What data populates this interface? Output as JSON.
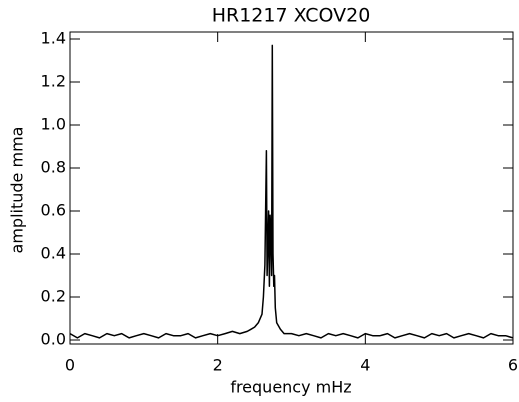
{
  "chart_data": {
    "type": "line",
    "title": "HR1217 XCOV20",
    "xlabel": "frequency mHz",
    "ylabel": "amplitude mma",
    "x": [
      0,
      0.1,
      0.2,
      0.3,
      0.4,
      0.5,
      0.6,
      0.7,
      0.8,
      0.9,
      1.0,
      1.1,
      1.2,
      1.3,
      1.4,
      1.5,
      1.6,
      1.7,
      1.8,
      1.9,
      2.0,
      2.1,
      2.2,
      2.3,
      2.4,
      2.45,
      2.5,
      2.55,
      2.6,
      2.62,
      2.64,
      2.66,
      2.67,
      2.68,
      2.69,
      2.7,
      2.71,
      2.72,
      2.73,
      2.74,
      2.75,
      2.76,
      2.77,
      2.78,
      2.8,
      2.85,
      2.9,
      3.0,
      3.1,
      3.2,
      3.3,
      3.4,
      3.5,
      3.6,
      3.7,
      3.8,
      3.9,
      4.0,
      4.1,
      4.2,
      4.3,
      4.4,
      4.5,
      4.6,
      4.7,
      4.8,
      4.9,
      5.0,
      5.1,
      5.2,
      5.3,
      5.4,
      5.5,
      5.6,
      5.7,
      5.8,
      5.9,
      6.0
    ],
    "series": [
      {
        "name": "amplitude",
        "color": "#000000",
        "values": [
          0.03,
          0.01,
          0.03,
          0.02,
          0.01,
          0.03,
          0.02,
          0.03,
          0.01,
          0.02,
          0.03,
          0.02,
          0.01,
          0.03,
          0.02,
          0.02,
          0.03,
          0.01,
          0.02,
          0.03,
          0.02,
          0.03,
          0.04,
          0.03,
          0.04,
          0.05,
          0.06,
          0.08,
          0.12,
          0.2,
          0.35,
          0.88,
          0.3,
          0.45,
          0.6,
          0.25,
          0.58,
          0.5,
          0.3,
          1.37,
          0.4,
          0.25,
          0.3,
          0.15,
          0.08,
          0.05,
          0.03,
          0.03,
          0.02,
          0.03,
          0.02,
          0.01,
          0.03,
          0.02,
          0.03,
          0.02,
          0.01,
          0.03,
          0.02,
          0.02,
          0.03,
          0.01,
          0.02,
          0.03,
          0.02,
          0.01,
          0.03,
          0.02,
          0.03,
          0.01,
          0.02,
          0.03,
          0.02,
          0.01,
          0.03,
          0.02,
          0.02,
          0.01
        ]
      }
    ],
    "xlim": [
      0,
      6
    ],
    "xticks": [
      0,
      2,
      4,
      6
    ],
    "ylim": [
      0,
      1.4
    ],
    "yticks": [
      {
        "value": 0,
        "label": "0.0"
      },
      {
        "value": 0.2,
        "label": "0.2"
      },
      {
        "value": 0.4,
        "label": "0.4"
      },
      {
        "value": 0.6,
        "label": "0.6"
      },
      {
        "value": 0.8,
        "label": "0.8"
      },
      {
        "value": 1.0,
        "label": "1.0"
      },
      {
        "value": 1.2,
        "label": "1.2"
      },
      {
        "value": 1.4,
        "label": "1.4"
      }
    ]
  }
}
